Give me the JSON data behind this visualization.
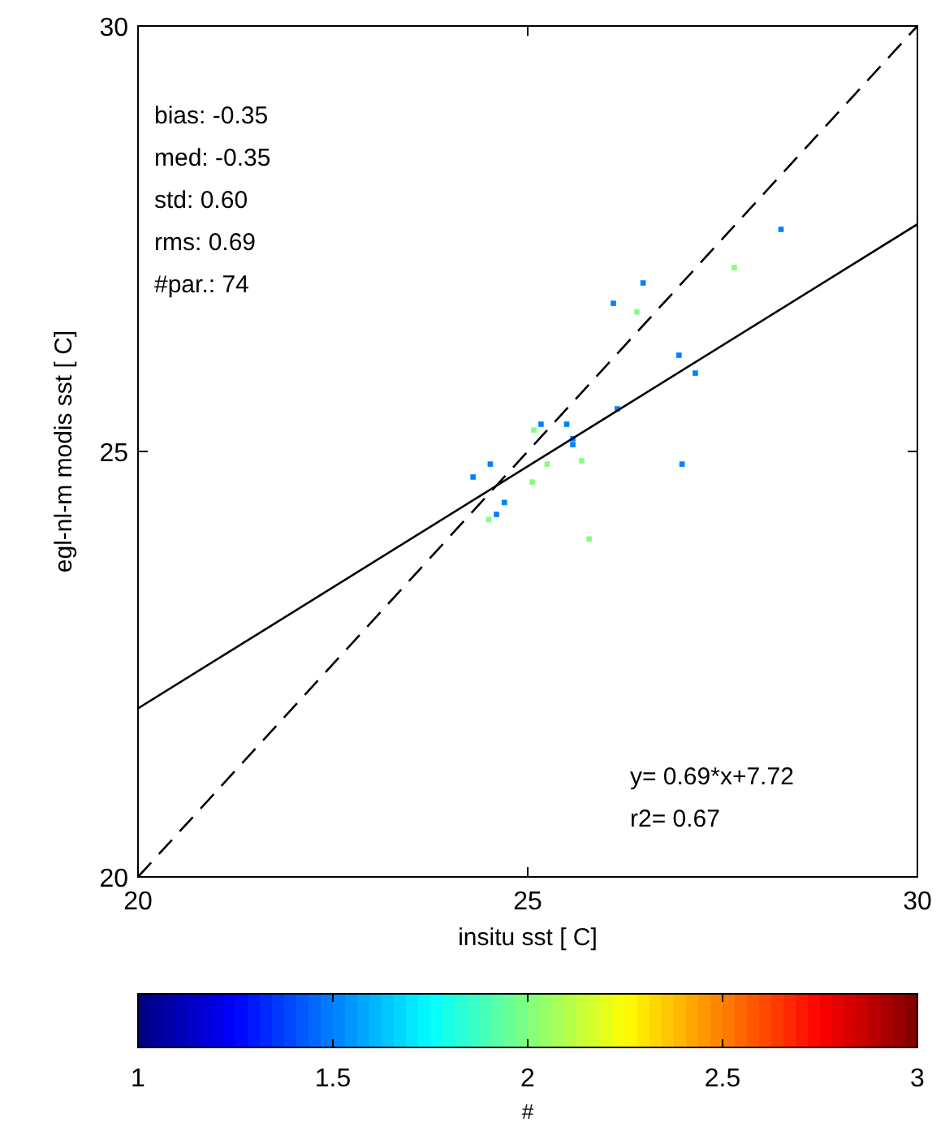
{
  "chart_data": {
    "type": "scatter",
    "xlabel": "insitu sst [ C]",
    "ylabel": "egl-nl-m modis sst [ C]",
    "clabel": "#",
    "xlim": [
      20,
      30
    ],
    "ylim": [
      20,
      30
    ],
    "xticks": [
      20,
      25,
      30
    ],
    "yticks": [
      20,
      25,
      30
    ],
    "clim": [
      1,
      3
    ],
    "cticks": [
      1,
      1.5,
      2,
      2.5,
      3
    ],
    "grid": false,
    "annotations": [
      "bias: -0.35",
      "med: -0.35",
      "std:  0.60",
      "rms:  0.69",
      "#par.: 74",
      "y= 0.69*x+7.72",
      "r2= 0.67"
    ],
    "series": [
      {
        "marker": "square",
        "x": [
          26.48,
          26.1,
          27.65,
          28.25,
          26.4,
          26.94,
          27.15,
          26.15,
          25.17,
          25.5,
          25.08,
          25.58,
          25.58,
          24.52,
          25.69,
          26.98,
          25.25,
          25.06,
          24.6,
          25.79,
          24.3,
          24.5,
          24.7
        ],
        "values": [
          26.98,
          26.74,
          27.16,
          27.61,
          26.64,
          26.13,
          25.92,
          25.5,
          25.32,
          25.32,
          25.25,
          25.15,
          25.08,
          24.85,
          24.89,
          24.85,
          24.85,
          24.64,
          24.26,
          23.97,
          24.7,
          24.2,
          24.4
        ],
        "cvalues": [
          1.5,
          1.5,
          2,
          1.5,
          2,
          1.5,
          1.5,
          1.5,
          1.5,
          1.5,
          2,
          1.5,
          1.5,
          1.5,
          2,
          1.5,
          2,
          2,
          1.5,
          2,
          1.5,
          2,
          1.5
        ],
        "colors": [
          "#0080ff",
          "#0080ff",
          "#80ff80",
          "#0080ff",
          "#80ff80",
          "#0080ff",
          "#0080ff",
          "#0080ff",
          "#0080ff",
          "#0080ff",
          "#80ff80",
          "#0080ff",
          "#0080ff",
          "#0080ff",
          "#80ff80",
          "#0080ff",
          "#80ff80",
          "#80ff80",
          "#0080ff",
          "#80ff80",
          "#0080ff",
          "#80ff80",
          "#0080ff"
        ]
      },
      {
        "type": "line",
        "x": [
          20,
          30
        ],
        "values": [
          21.98,
          27.67
        ],
        "color": "#000000",
        "line_style": "solid",
        "marker": "none"
      },
      {
        "type": "line",
        "x": [
          20,
          30
        ],
        "values": [
          20,
          30
        ],
        "color": "#000000",
        "line_style": "dashed",
        "marker": "none"
      }
    ]
  }
}
